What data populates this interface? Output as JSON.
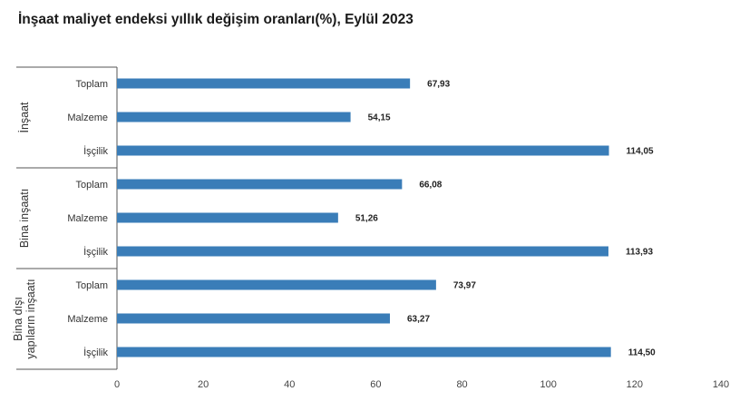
{
  "chart_data": {
    "type": "bar",
    "orientation": "horizontal",
    "title": "İnşaat maliyet endeksi yıllık değişim oranları(%), Eylül 2023",
    "xlim": [
      0,
      140
    ],
    "x_ticks": [
      "0",
      "20",
      "40",
      "60",
      "80",
      "100",
      "120",
      "140"
    ],
    "grid": false,
    "bar_color": "#3a7db8",
    "groups": [
      {
        "label_lines": [
          "İnşaat"
        ],
        "categories": [
          "Toplam",
          "Malzeme",
          "İşçilik"
        ],
        "values": [
          67.93,
          54.15,
          114.05
        ],
        "value_labels": [
          "67,93",
          "54,15",
          "114,05"
        ]
      },
      {
        "label_lines": [
          "Bina inşaatı"
        ],
        "categories": [
          "Toplam",
          "Malzeme",
          "İşçilik"
        ],
        "values": [
          66.08,
          51.26,
          113.93
        ],
        "value_labels": [
          "66,08",
          "51,26",
          "113,93"
        ]
      },
      {
        "label_lines": [
          "Bina dışı",
          "yapıların inşaatı"
        ],
        "categories": [
          "Toplam",
          "Malzeme",
          "İşçilik"
        ],
        "values": [
          73.97,
          63.27,
          114.5
        ],
        "value_labels": [
          "73,97",
          "63,27",
          "114,50"
        ]
      }
    ]
  }
}
